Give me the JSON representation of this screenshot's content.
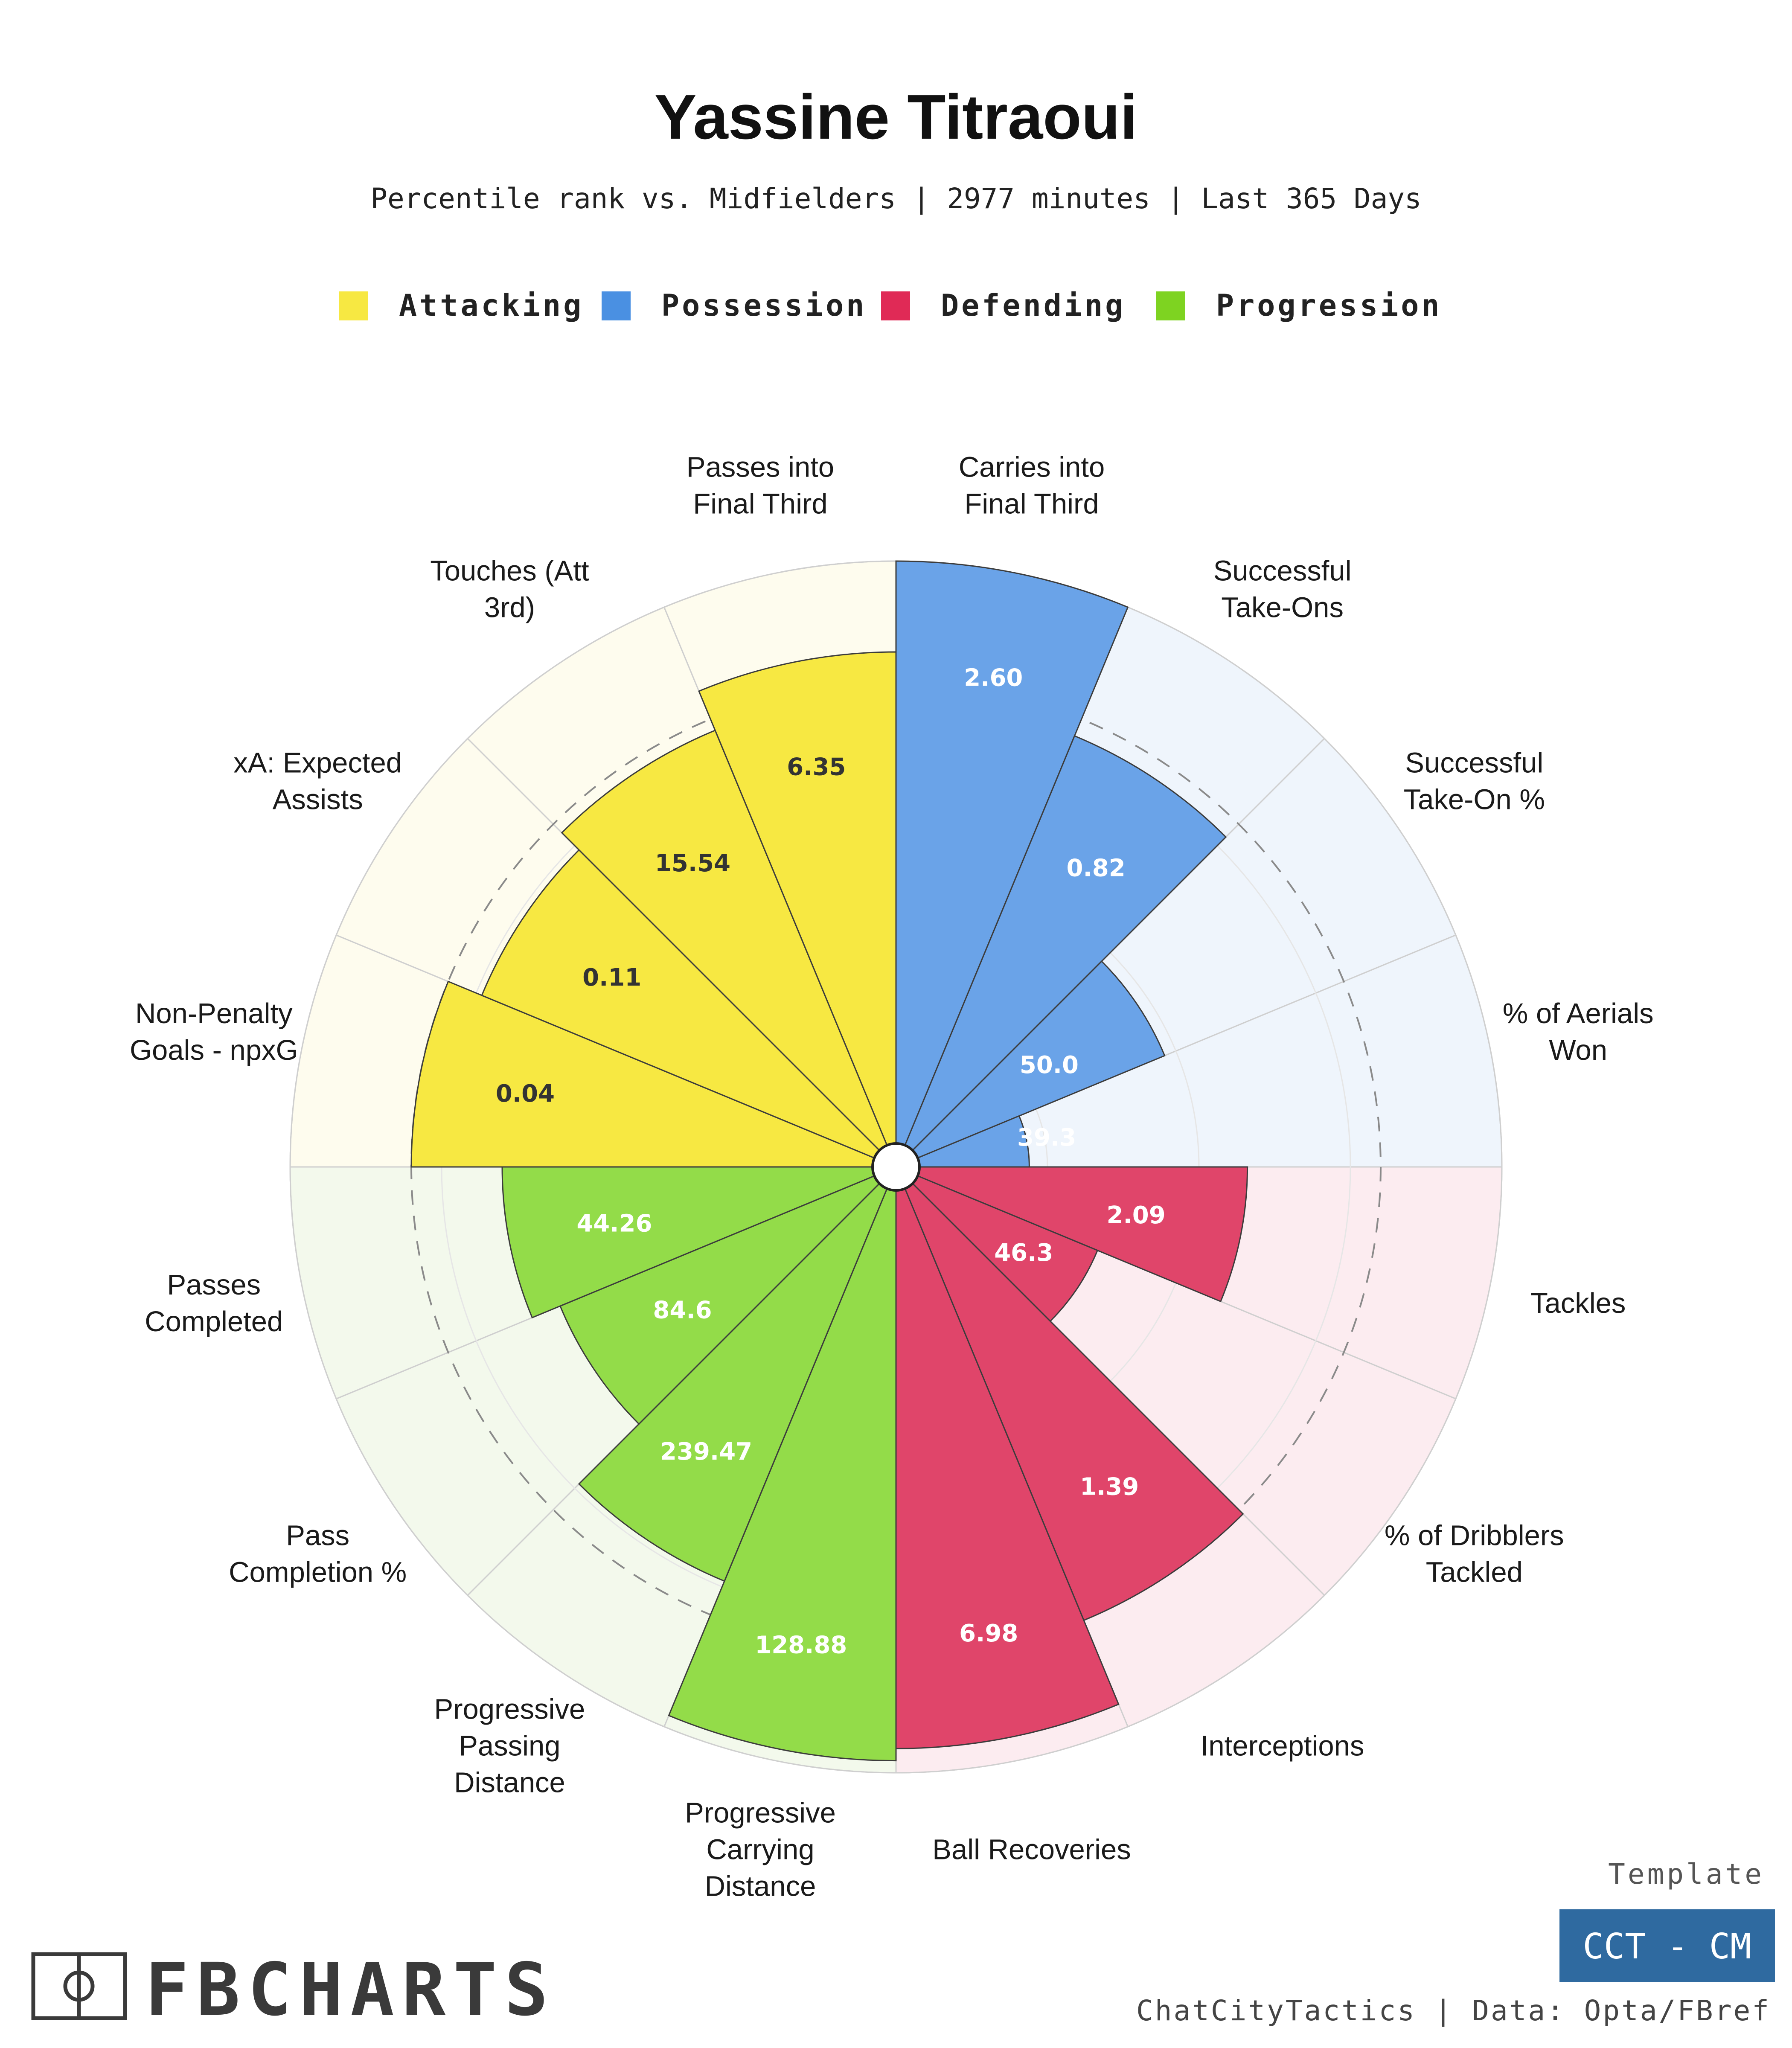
{
  "header": {
    "title": "Yassine Titraoui",
    "subtitle": "Percentile rank vs. Midfielders | 2977 minutes | Last 365 Days"
  },
  "legend": [
    {
      "label": "Attacking",
      "color": "#f7e842"
    },
    {
      "label": "Possession",
      "color": "#4a90e2"
    },
    {
      "label": "Defending",
      "color": "#e02a56"
    },
    {
      "label": "Progression",
      "color": "#7ed321"
    }
  ],
  "chart_data": {
    "type": "polar-bar",
    "scale": [
      0,
      100
    ],
    "reference_rings": [
      25,
      50,
      75
    ],
    "dashed_ring": 80,
    "slices": [
      {
        "label": "Carries into Final Third",
        "value_text": "2.60",
        "percentile": 100,
        "category": "Possession",
        "label_lines": [
          "Carries into",
          "Final Third"
        ]
      },
      {
        "label": "Successful Take-Ons",
        "value_text": "0.82",
        "percentile": 77,
        "category": "Possession",
        "label_lines": [
          "Successful",
          "Take-Ons"
        ]
      },
      {
        "label": "Successful Take-On %",
        "value_text": "50.0",
        "percentile": 48,
        "category": "Possession",
        "label_lines": [
          "Successful",
          "Take-On %"
        ]
      },
      {
        "label": "% of Aerials Won",
        "value_text": "39.3",
        "percentile": 22,
        "category": "Possession",
        "label_lines": [
          "% of Aerials",
          "Won"
        ]
      },
      {
        "label": "Tackles",
        "value_text": "2.09",
        "percentile": 58,
        "category": "Defending",
        "label_lines": [
          "Tackles"
        ]
      },
      {
        "label": "% of Dribblers Tackled",
        "value_text": "46.3",
        "percentile": 36,
        "category": "Defending",
        "label_lines": [
          "% of Dribblers",
          "Tackled"
        ]
      },
      {
        "label": "Interceptions",
        "value_text": "1.39",
        "percentile": 81,
        "category": "Defending",
        "label_lines": [
          "Interceptions"
        ]
      },
      {
        "label": "Ball Recoveries",
        "value_text": "6.98",
        "percentile": 96,
        "category": "Defending",
        "label_lines": [
          "Ball Recoveries"
        ]
      },
      {
        "label": "Progressive Carrying Distance",
        "value_text": "128.88",
        "percentile": 98,
        "category": "Progression",
        "label_lines": [
          "Progressive",
          "Carrying",
          "Distance"
        ]
      },
      {
        "label": "Progressive Passing Distance",
        "value_text": "239.47",
        "percentile": 74,
        "category": "Progression",
        "label_lines": [
          "Progressive",
          "Passing",
          "Distance"
        ]
      },
      {
        "label": "Pass Completion %",
        "value_text": "84.6",
        "percentile": 60,
        "category": "Progression",
        "label_lines": [
          "Pass",
          "Completion %"
        ]
      },
      {
        "label": "Passes Completed",
        "value_text": "44.26",
        "percentile": 65,
        "category": "Progression",
        "label_lines": [
          "Passes",
          "Completed"
        ]
      },
      {
        "label": "Non-Penalty Goals - npxG",
        "value_text": "0.04",
        "percentile": 80,
        "category": "Attacking",
        "label_lines": [
          "Non-Penalty",
          "Goals - npxG"
        ]
      },
      {
        "label": "xA: Expected Assists",
        "value_text": "0.11",
        "percentile": 74,
        "category": "Attacking",
        "label_lines": [
          "xA: Expected",
          "Assists"
        ]
      },
      {
        "label": "Touches (Att 3rd)",
        "value_text": "15.54",
        "percentile": 78,
        "category": "Attacking",
        "label_lines": [
          "Touches (Att",
          "3rd)"
        ]
      },
      {
        "label": "Passes into Final Third",
        "value_text": "6.35",
        "percentile": 85,
        "category": "Attacking",
        "label_lines": [
          "Passes into",
          "Final Third"
        ]
      }
    ]
  },
  "category_colors": {
    "Attacking": {
      "bar": "#f7e842",
      "bg": "#fefcee",
      "text": "#333333"
    },
    "Possession": {
      "bar": "#6aa3e8",
      "bg": "#eff5fc",
      "text": "#ffffff"
    },
    "Defending": {
      "bar": "#e0456a",
      "bg": "#fcecf0",
      "text": "#ffffff"
    },
    "Progression": {
      "bar": "#93dc49",
      "bg": "#f3f9ec",
      "text": "#ffffff"
    }
  },
  "footer": {
    "template_label": "Template",
    "template_name": "CCT - CM",
    "credit": "ChatCityTactics | Data: Opta/FBref",
    "brand": "FBCHARTS"
  }
}
